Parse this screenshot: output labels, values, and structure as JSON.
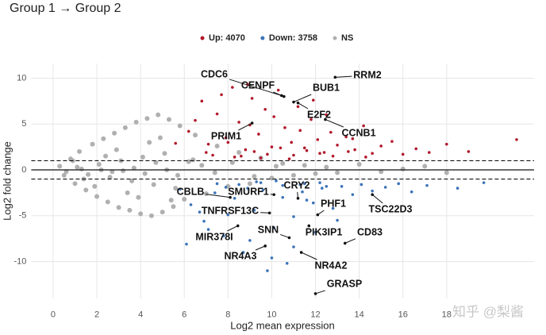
{
  "chart_data": {
    "type": "scatter",
    "title": "Group 1 → Group 2",
    "x_label": "Log2 mean expression",
    "y_label": "Log2 fold change",
    "watermark": "知乎 @梨酱",
    "xlim": [
      -1,
      22
    ],
    "ylim": [
      -14,
      11.6
    ],
    "xticks": [
      0,
      2,
      4,
      6,
      8,
      10,
      12,
      14,
      16,
      18
    ],
    "yticks": [
      -10,
      -5,
      0,
      5,
      10
    ],
    "grid": true,
    "legend": "top",
    "hlines": [
      {
        "value": 1,
        "dashed": true
      },
      {
        "value": 0,
        "dashed": false
      },
      {
        "value": -1,
        "dashed": true
      }
    ],
    "series": [
      {
        "name": "NS",
        "color": "#b0b0b0",
        "x": [
          0.3,
          0.5,
          0.8,
          1.0,
          1.2,
          1.5,
          1.8,
          2.0,
          2.3,
          2.5,
          2.8,
          3.0,
          3.3,
          3.5,
          3.8,
          4.0,
          4.3,
          4.5,
          4.8,
          5.0,
          5.3,
          5.5,
          5.8,
          6.0,
          6.5,
          7.0,
          7.5,
          8.0,
          8.5,
          9.0,
          9.5,
          10.0,
          10.5,
          11.0,
          11.5,
          12.0,
          12.5,
          13.0,
          14.0,
          15.0,
          16.0,
          17.0,
          18.0,
          0.6,
          1.1,
          1.6,
          2.1,
          2.6,
          3.1,
          3.6,
          4.1,
          4.6,
          5.1,
          5.6,
          6.2,
          6.8,
          7.4,
          8.2,
          9.2,
          10.2,
          1.4,
          2.4,
          3.4,
          4.4,
          5.4,
          0.9,
          1.9,
          2.9,
          3.9,
          4.9,
          3.2,
          3.7,
          4.2,
          4.7,
          5.2,
          2.2,
          2.7,
          1.3,
          5.7,
          6.4
        ],
        "values": [
          0.4,
          -0.6,
          1.2,
          -1.5,
          2.0,
          -2.2,
          2.8,
          -2.9,
          3.4,
          -3.5,
          4.0,
          -4.1,
          4.6,
          -4.4,
          5.2,
          -4.8,
          5.6,
          -5.0,
          6.0,
          -4.6,
          5.5,
          -4.0,
          4.8,
          -3.2,
          3.8,
          -2.6,
          2.6,
          -1.8,
          1.9,
          -1.5,
          1.3,
          -0.9,
          0.7,
          -0.6,
          0.5,
          -0.4,
          0.3,
          -0.3,
          0.6,
          -0.2,
          0.1,
          0.4,
          -0.3,
          -0.2,
          0.3,
          -0.5,
          0.6,
          -0.8,
          1.0,
          -1.2,
          1.4,
          -1.6,
          1.8,
          -2.0,
          0.9,
          0.5,
          -0.3,
          0.8,
          -0.7,
          0.4,
          -1.0,
          1.5,
          -2.5,
          3.0,
          -3.3,
          1.0,
          -1.8,
          2.2,
          -3.0,
          3.5,
          -0.1,
          0.2,
          -0.4,
          0.8,
          0.0,
          0.0,
          -0.2,
          0.1,
          -0.6,
          1.1
        ]
      },
      {
        "name": "Up: 4070",
        "color": "#b2182b",
        "x": [
          6.2,
          6.8,
          7.1,
          7.5,
          7.9,
          8.2,
          8.5,
          8.8,
          9.1,
          9.4,
          9.7,
          10.0,
          10.3,
          10.6,
          10.9,
          11.2,
          11.5,
          11.8,
          12.1,
          12.4,
          12.7,
          13.0,
          13.4,
          13.8,
          14.2,
          14.6,
          15.0,
          15.5,
          16.0,
          16.6,
          17.2,
          18.0,
          19.0,
          21.2,
          7.3,
          8.0,
          8.6,
          9.2,
          9.8,
          10.4,
          11.0,
          11.6,
          12.2,
          12.8,
          13.5,
          14.3,
          5.6,
          6.5,
          7.7,
          8.9,
          10.1,
          11.3,
          12.5,
          13.7,
          9.5,
          10.8,
          8.3,
          7.0,
          11.9,
          9.0
        ],
        "values": [
          4.2,
          7.5,
          2.8,
          6.1,
          3.5,
          9.0,
          5.2,
          2.2,
          7.8,
          3.9,
          6.6,
          2.5,
          8.7,
          4.6,
          3.0,
          6.9,
          2.4,
          5.5,
          3.3,
          1.9,
          4.1,
          2.7,
          3.6,
          2.2,
          4.8,
          1.8,
          2.6,
          3.1,
          1.7,
          2.3,
          1.9,
          2.8,
          2.0,
          3.3,
          1.6,
          3.0,
          1.5,
          2.0,
          1.7,
          2.4,
          1.6,
          2.1,
          1.8,
          1.5,
          2.0,
          1.4,
          2.9,
          5.4,
          8.2,
          9.3,
          5.8,
          4.3,
          6.0,
          3.4,
          1.3,
          1.2,
          1.4,
          1.9,
          7.6,
          4.9
        ]
      },
      {
        "name": "Down: 3758",
        "color": "#3b73b9",
        "x": [
          5.8,
          6.3,
          6.9,
          7.4,
          7.8,
          8.3,
          8.7,
          9.2,
          9.6,
          10.1,
          10.5,
          11.0,
          11.4,
          11.9,
          12.3,
          12.8,
          13.2,
          13.7,
          14.1,
          14.6,
          15.2,
          15.8,
          16.4,
          17.1,
          18.5,
          19.7,
          6.1,
          7.1,
          8.0,
          9.0,
          10.0,
          11.0,
          12.0,
          13.0,
          7.5,
          8.5,
          9.5,
          10.5,
          11.5,
          12.5,
          9.8,
          10.7,
          11.6,
          8.9,
          7.9,
          6.7,
          9.3,
          10.2,
          11.3,
          12.2
        ],
        "values": [
          -2.1,
          -3.8,
          -5.6,
          -2.5,
          -7.2,
          -3.1,
          -9.0,
          -4.4,
          -2.2,
          -6.3,
          -3.0,
          -5.1,
          -2.4,
          -3.6,
          -2.0,
          -4.2,
          -1.8,
          -2.7,
          -1.6,
          -2.3,
          -1.9,
          -1.5,
          -2.4,
          -1.7,
          -2.0,
          -1.4,
          -8.1,
          -6.5,
          -4.9,
          -7.7,
          -9.6,
          -8.4,
          -6.8,
          -5.5,
          -1.5,
          -1.6,
          -1.4,
          -1.7,
          -1.5,
          -1.8,
          -11.0,
          -10.2,
          -3.3,
          -2.0,
          -1.9,
          -4.6,
          -1.3,
          -1.2,
          -1.6,
          -1.4
        ]
      }
    ],
    "legend_order": [
      1,
      2,
      0
    ],
    "genes": [
      {
        "label": "RRM2",
        "x": 12.9,
        "y": 10.1
      },
      {
        "label": "CDC6",
        "x": 10.45,
        "y": 8.1
      },
      {
        "label": "CENPF",
        "x": 10.56,
        "y": 8.0
      },
      {
        "label": "BUB1",
        "x": 11.0,
        "y": 7.4
      },
      {
        "label": "E2F2",
        "x": 11.2,
        "y": 7.3
      },
      {
        "label": "CCNB1",
        "x": 12.45,
        "y": 5.5
      },
      {
        "label": "PRIM1",
        "x": 9.1,
        "y": 5.1
      },
      {
        "label": "CRY2",
        "x": 11.2,
        "y": -3.1
      },
      {
        "label": "CBLB",
        "x": 8.1,
        "y": -3.0
      },
      {
        "label": "SMURF1",
        "x": 10.1,
        "y": -2.7
      },
      {
        "label": "TNFRSF13C",
        "x": 9.9,
        "y": -4.7
      },
      {
        "label": "PHF1",
        "x": 12.1,
        "y": -4.9
      },
      {
        "label": "TSC22D3",
        "x": 14.6,
        "y": -2.7
      },
      {
        "label": "MIR378I",
        "x": 8.45,
        "y": -6.1
      },
      {
        "label": "SNN",
        "x": 10.8,
        "y": -7.4
      },
      {
        "label": "PIK3IP1",
        "x": 11.7,
        "y": -6.1
      },
      {
        "label": "CD83",
        "x": 13.35,
        "y": -8.0
      },
      {
        "label": "NR4A3",
        "x": 9.7,
        "y": -8.3
      },
      {
        "label": "NR4A2",
        "x": 11.35,
        "y": -9.0
      },
      {
        "label": "GRASP",
        "x": 12.0,
        "y": -13.5
      }
    ]
  }
}
